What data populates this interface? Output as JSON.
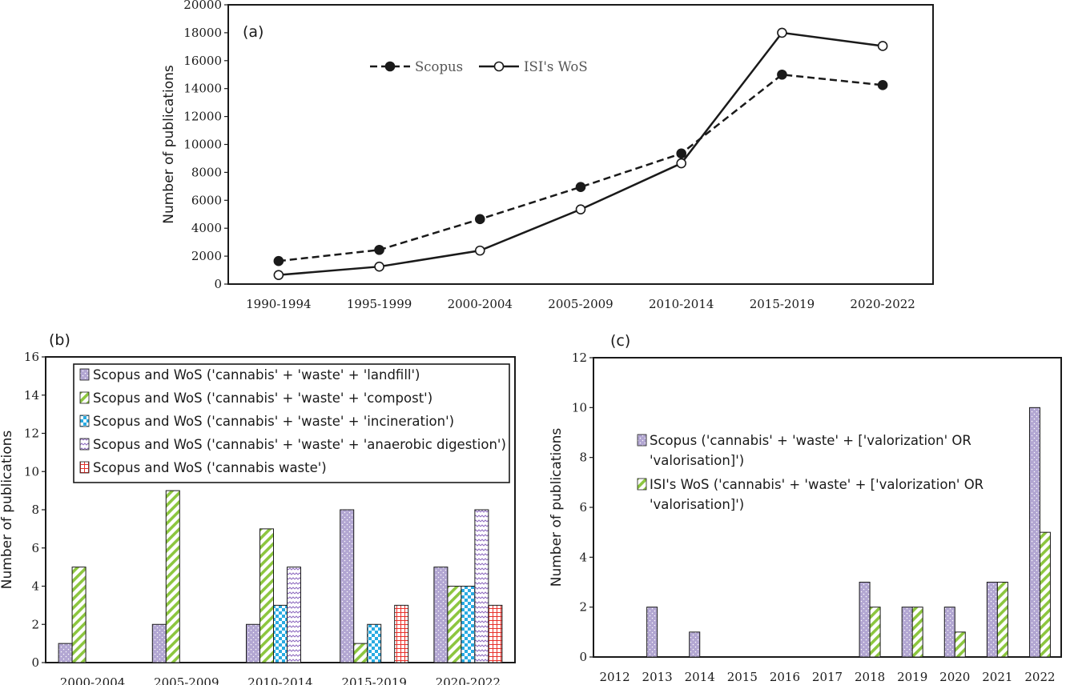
{
  "chart_data": [
    {
      "panel": "(a)",
      "type": "line",
      "categories": [
        "1990-1994",
        "1995-1999",
        "2000-2004",
        "2005-2009",
        "2010-2014",
        "2015-2019",
        "2020-2022"
      ],
      "series": [
        {
          "name": "Scopus",
          "values": [
            1650,
            2450,
            4650,
            6950,
            9350,
            15000,
            14250
          ],
          "style": "dashed",
          "marker": "filled-circle",
          "color": "#1a1a1a"
        },
        {
          "name": "ISI's WoS",
          "values": [
            650,
            1250,
            2400,
            5350,
            8650,
            18000,
            17050
          ],
          "style": "solid",
          "marker": "open-circle",
          "color": "#1a1a1a"
        }
      ],
      "ylabel": "Number of publications",
      "ylim": [
        0,
        20000
      ],
      "yticks": [
        "0",
        "2000",
        "4000",
        "6000",
        "8000",
        "10000",
        "12000",
        "14000",
        "16000",
        "18000",
        "20000"
      ],
      "grid": false,
      "legend_placement": "top-center"
    },
    {
      "panel": "(b)",
      "type": "bar",
      "categories": [
        "2000-2004",
        "2005-2009",
        "2010-2014",
        "2015-2019",
        "2020-2022"
      ],
      "series": [
        {
          "name": "Scopus and WoS ('cannabis' + 'waste' + 'landfill')",
          "values": [
            1,
            2,
            2,
            8,
            5
          ],
          "pattern": "dots-purple",
          "color": "#b2a6d2"
        },
        {
          "name": "Scopus and WoS ('cannabis' + 'waste' + 'compost')",
          "values": [
            5,
            9,
            7,
            1,
            4
          ],
          "pattern": "diagonal-green",
          "color": "#8cc63f"
        },
        {
          "name": "Scopus and WoS ('cannabis' + 'waste' + 'incineration')",
          "values": [
            0,
            0,
            3,
            2,
            4
          ],
          "pattern": "checker-blue",
          "color": "#29abe2"
        },
        {
          "name": "Scopus and WoS ('cannabis' + 'waste' + 'anaerobic digestion')",
          "values": [
            0,
            0,
            5,
            0,
            8
          ],
          "pattern": "zigzag-purple",
          "color": "#8e6bbf"
        },
        {
          "name": "Scopus and WoS ('cannabis waste')",
          "values": [
            0,
            0,
            0,
            3,
            3
          ],
          "pattern": "grid-red",
          "color": "#e8302a"
        }
      ],
      "ylabel": "Number of publications",
      "ylim": [
        0,
        16
      ],
      "yticks": [
        "0",
        "2",
        "4",
        "6",
        "8",
        "10",
        "12",
        "14",
        "16"
      ],
      "grid": false,
      "legend_placement": "top-left"
    },
    {
      "panel": "(c)",
      "type": "bar",
      "categories": [
        "2012",
        "2013",
        "2014",
        "2015",
        "2016",
        "2017",
        "2018",
        "2019",
        "2020",
        "2021",
        "2022"
      ],
      "series": [
        {
          "name": "Scopus ('cannabis' + 'waste' + ['valorization' OR 'valorisation]')",
          "legend_lines": [
            "Scopus ('cannabis' + 'waste' + ['valorization' OR",
            "'valorisation]')"
          ],
          "values": [
            0,
            2,
            1,
            0,
            0,
            0,
            3,
            2,
            2,
            3,
            10
          ],
          "pattern": "dots-purple",
          "color": "#b2a6d2"
        },
        {
          "name": "ISI's WoS ('cannabis' + 'waste' + ['valorization' OR 'valorisation]')",
          "legend_lines": [
            "ISI's WoS ('cannabis' + 'waste' + ['valorization' OR",
            "'valorisation]')"
          ],
          "values": [
            0,
            0,
            0,
            0,
            0,
            0,
            2,
            2,
            1,
            3,
            5
          ],
          "pattern": "diagonal-green",
          "color": "#8cc63f"
        }
      ],
      "ylabel": "Number of publications",
      "ylim": [
        0,
        12
      ],
      "yticks": [
        "0",
        "2",
        "4",
        "6",
        "8",
        "10",
        "12"
      ],
      "grid": false,
      "legend_placement": "center-left"
    }
  ]
}
